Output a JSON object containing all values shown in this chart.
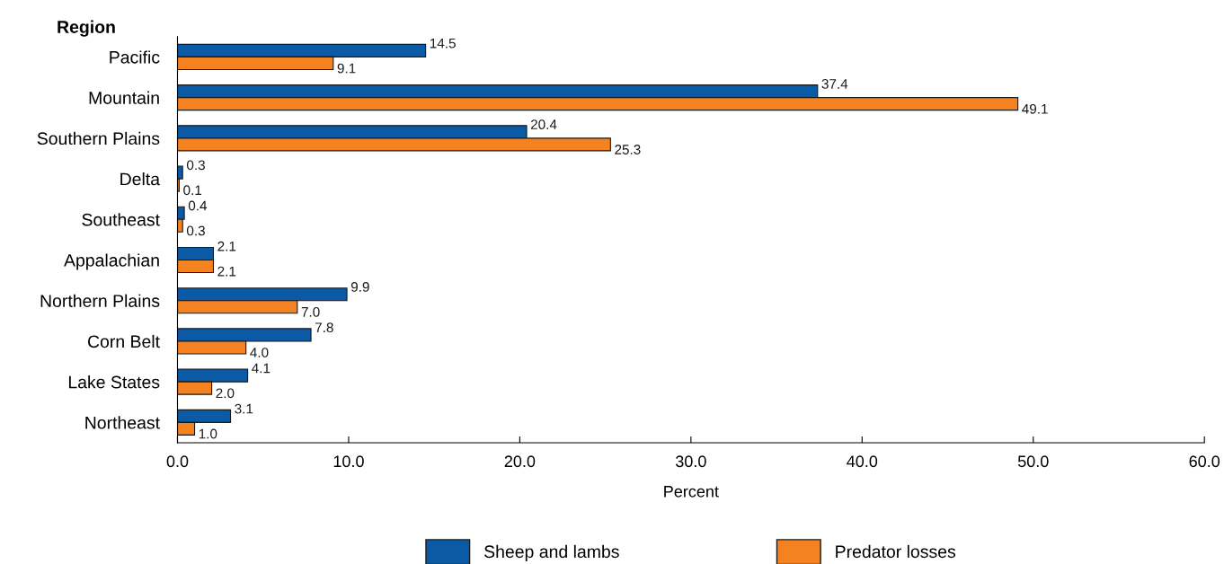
{
  "chart_data": {
    "type": "bar",
    "orientation": "horizontal",
    "ylabel": "Region",
    "xlabel": "Percent",
    "categories": [
      "Pacific",
      "Mountain",
      "Southern Plains",
      "Delta",
      "Southeast",
      "Appalachian",
      "Northern Plains",
      "Corn Belt",
      "Lake States",
      "Northeast"
    ],
    "series": [
      {
        "name": "Sheep and lambs",
        "color": "#0b5aa6",
        "values": [
          14.5,
          37.4,
          20.4,
          0.3,
          0.4,
          2.1,
          9.9,
          7.8,
          4.1,
          3.1
        ],
        "value_labels": [
          "14.5",
          "37.4",
          "20.4",
          "0.3",
          "0.4",
          "2.1",
          "9.9",
          "7.8",
          "4.1",
          "3.1"
        ]
      },
      {
        "name": "Predator losses",
        "color": "#f58220",
        "values": [
          9.1,
          49.1,
          25.3,
          0.1,
          0.3,
          2.1,
          7.0,
          4.0,
          2.0,
          1.0
        ],
        "value_labels": [
          "9.1",
          "49.1",
          "25.3",
          "0.1",
          "0.3",
          "2.1",
          "7.0",
          "4.0",
          "2.0",
          "1.0"
        ]
      }
    ],
    "xlim": [
      0,
      60
    ],
    "xticks": [
      {
        "value": 0,
        "label": "0.0"
      },
      {
        "value": 10,
        "label": "10.0"
      },
      {
        "value": 20,
        "label": "20.0"
      },
      {
        "value": 30,
        "label": "30.0"
      },
      {
        "value": 40,
        "label": "40.0"
      },
      {
        "value": 50,
        "label": "50.0"
      },
      {
        "value": 60,
        "label": "60.0"
      }
    ],
    "grid": false,
    "legend": "bottom"
  }
}
